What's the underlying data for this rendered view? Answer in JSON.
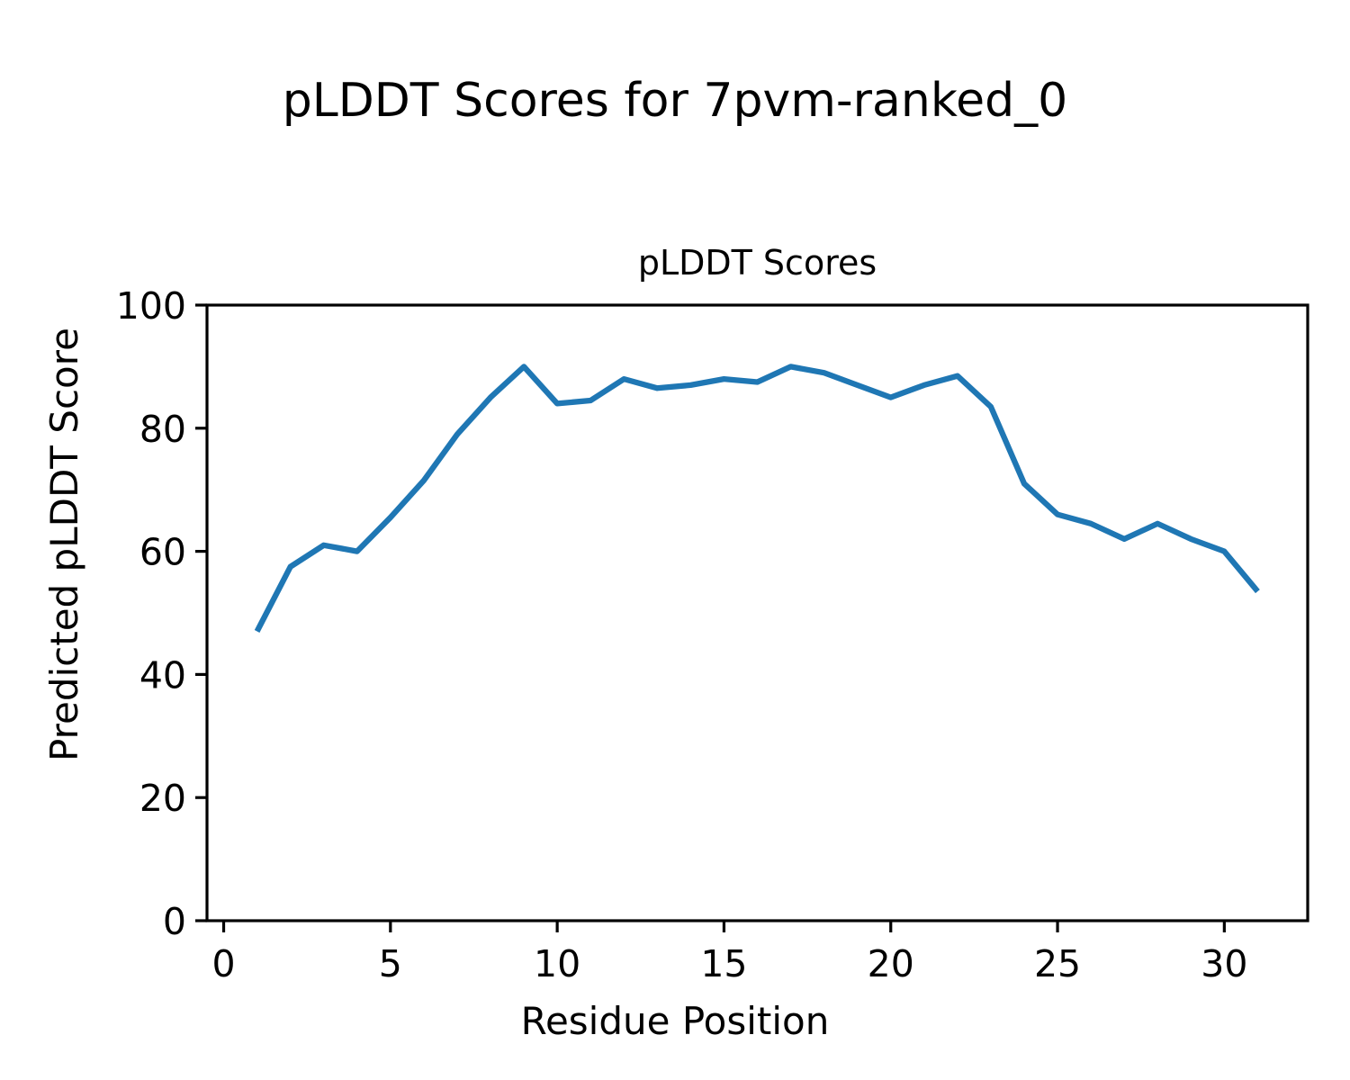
{
  "figure": {
    "suptitle": "pLDDT Scores for 7pvm-ranked_0",
    "background_color": "#ffffff"
  },
  "chart_data": {
    "type": "line",
    "title": "pLDDT Scores",
    "xlabel": "Residue Position",
    "ylabel": "Predicted pLDDT Score",
    "x": [
      1,
      2,
      3,
      4,
      5,
      6,
      7,
      8,
      9,
      10,
      11,
      12,
      13,
      14,
      15,
      16,
      17,
      18,
      19,
      20,
      21,
      22,
      23,
      24,
      25,
      26,
      27,
      28,
      29,
      30,
      31
    ],
    "y": [
      47,
      57.5,
      61,
      60,
      65.5,
      71.5,
      79,
      85,
      90,
      84,
      84.5,
      88,
      86.5,
      87,
      88,
      87.5,
      90,
      89,
      87,
      85,
      87,
      88.5,
      83.5,
      71,
      66,
      64.5,
      62,
      64.5,
      62,
      60,
      53.5
    ],
    "series_name": "pLDDT",
    "xlim": [
      -0.5,
      32.5
    ],
    "ylim": [
      0,
      100
    ],
    "xticks": [
      0,
      5,
      10,
      15,
      20,
      25,
      30
    ],
    "yticks": [
      0,
      20,
      40,
      60,
      80,
      100
    ],
    "line_color": "#1f77b4",
    "axis_color": "#000000",
    "grid": false,
    "legend": null
  }
}
